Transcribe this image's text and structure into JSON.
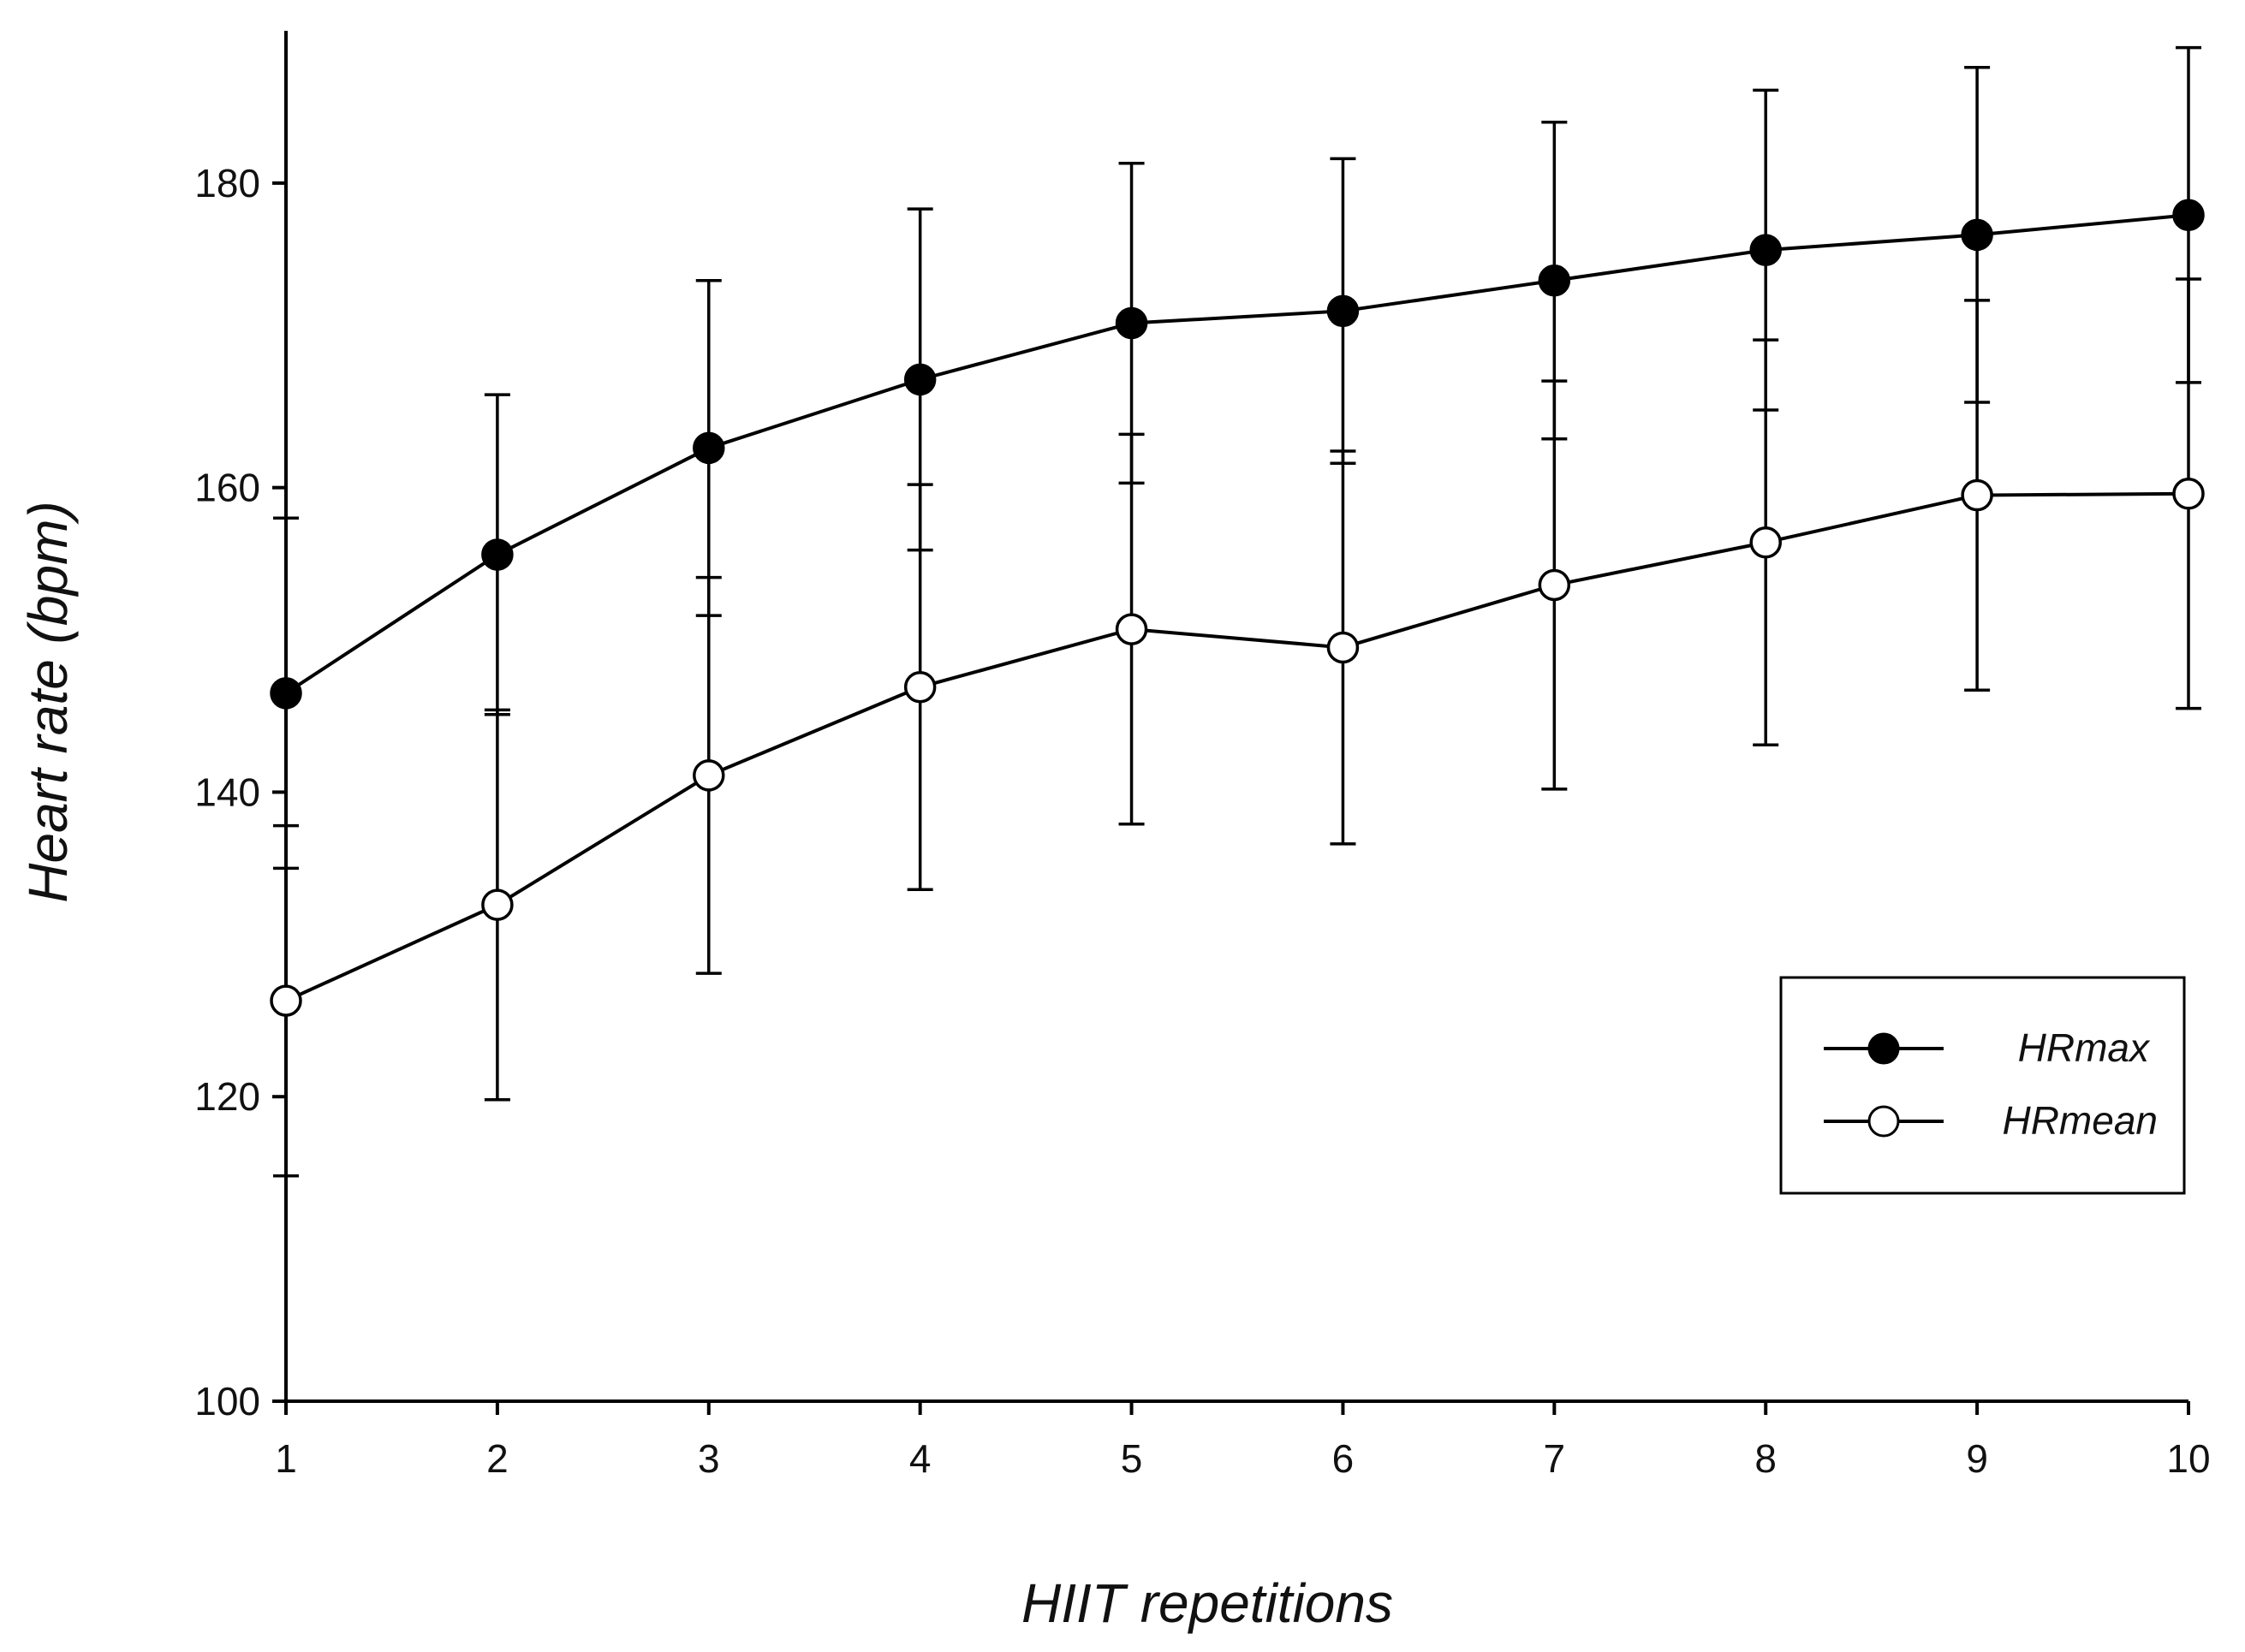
{
  "chart_data": {
    "type": "line",
    "xlabel": "HIIT repetitions",
    "ylabel": "Heart rate (bpm)",
    "x": [
      1,
      2,
      3,
      4,
      5,
      6,
      7,
      8,
      9,
      10
    ],
    "xticks": [
      "1",
      "2",
      "3",
      "4",
      "5",
      "6",
      "7",
      "8",
      "9",
      "10"
    ],
    "ylim": [
      100,
      190
    ],
    "yticks": [
      100,
      120,
      140,
      160,
      180
    ],
    "ytick_labels": [
      "100",
      "120",
      "140",
      "160",
      "180"
    ],
    "grid": false,
    "legend_position": "bottom-right",
    "series": [
      {
        "name": "HRmax",
        "marker": "filled-circle",
        "color": "#000000",
        "values": [
          146.5,
          155.6,
          162.6,
          167.1,
          170.8,
          171.6,
          173.6,
          175.6,
          176.6,
          177.9
        ],
        "error": [
          11.5,
          10.5,
          11.0,
          11.2,
          10.5,
          10.0,
          10.4,
          10.5,
          11.0,
          11.0
        ]
      },
      {
        "name": "HRmean",
        "marker": "open-circle",
        "color": "#000000",
        "values": [
          126.3,
          132.6,
          141.1,
          146.9,
          150.7,
          149.5,
          153.6,
          156.4,
          159.5,
          159.6
        ],
        "error": [
          11.5,
          12.8,
          13.0,
          13.3,
          12.8,
          12.9,
          13.4,
          13.3,
          12.8,
          14.1
        ]
      }
    ]
  }
}
